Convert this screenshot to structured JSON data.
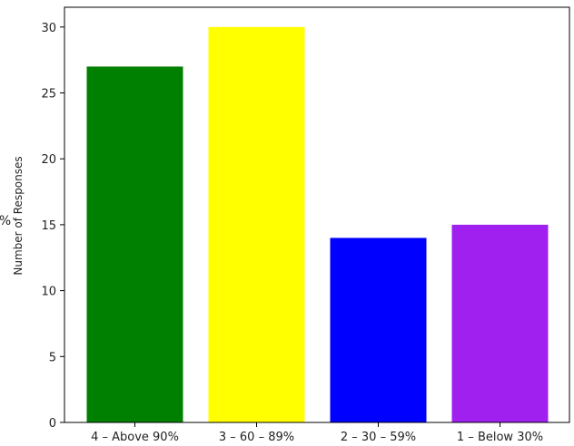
{
  "chart_data": {
    "type": "bar",
    "categories": [
      "4 – Above 90%",
      "3 – 60 – 89%",
      "2 – 30 – 59%",
      "1 – Below 30%"
    ],
    "values": [
      27,
      30,
      14,
      15
    ],
    "colors": [
      "#008000",
      "#ffff00",
      "#0000ff",
      "#a020f0"
    ],
    "title": "",
    "xlabel": "",
    "ylabel": "Number of Responses",
    "ylim": [
      0,
      31.5
    ],
    "yticks": [
      0,
      5,
      10,
      15,
      20,
      25,
      30
    ],
    "grid": false,
    "overlap_fragment": "9%"
  }
}
